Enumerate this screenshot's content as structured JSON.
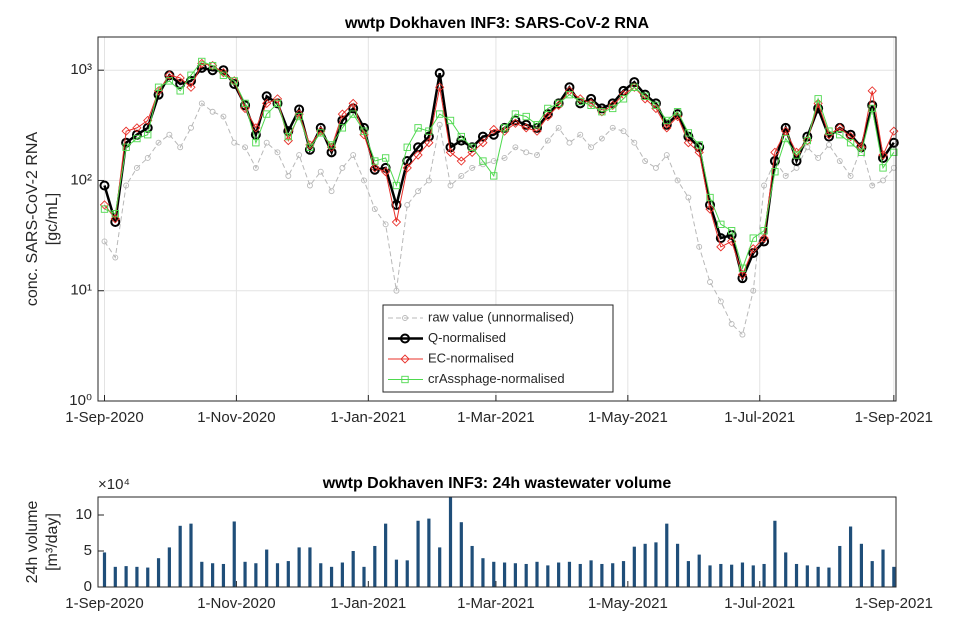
{
  "chart_data": [
    {
      "type": "line",
      "title": "wwtp Dokhaven INF3: SARS-CoV-2 RNA",
      "y_label": [
        "conc. SARS-CoV-2 RNA",
        "[gc/mL]"
      ],
      "log_scale_y": true,
      "grid": true,
      "legend": "bottom-center",
      "xlim": [
        "2020-08-29",
        "2021-09-02"
      ],
      "xticks": [
        {
          "value": "2020-09-01",
          "label": "1-Sep-2020"
        },
        {
          "value": "2020-11-01",
          "label": "1-Nov-2020"
        },
        {
          "value": "2021-01-01",
          "label": "1-Jan-2021"
        },
        {
          "value": "2021-03-01",
          "label": "1-Mar-2021"
        },
        {
          "value": "2021-05-01",
          "label": "1-May-2021"
        },
        {
          "value": "2021-07-01",
          "label": "1-Jul-2021"
        },
        {
          "value": "2021-09-01",
          "label": "1-Sep-2021"
        }
      ],
      "ylim": [
        1,
        2000
      ],
      "yticks": [
        {
          "value": 1,
          "label": "10⁰"
        },
        {
          "value": 10,
          "label": "10¹"
        },
        {
          "value": 100,
          "label": "10²"
        },
        {
          "value": 1000,
          "label": "10³"
        }
      ],
      "x": [
        "2020-09-01",
        "2020-09-06",
        "2020-09-11",
        "2020-09-16",
        "2020-09-21",
        "2020-09-26",
        "2020-10-01",
        "2020-10-06",
        "2020-10-11",
        "2020-10-16",
        "2020-10-21",
        "2020-10-26",
        "2020-10-31",
        "2020-11-05",
        "2020-11-10",
        "2020-11-15",
        "2020-11-20",
        "2020-11-25",
        "2020-11-30",
        "2020-12-05",
        "2020-12-10",
        "2020-12-15",
        "2020-12-20",
        "2020-12-25",
        "2020-12-30",
        "2021-01-04",
        "2021-01-09",
        "2021-01-14",
        "2021-01-19",
        "2021-01-24",
        "2021-01-29",
        "2021-02-03",
        "2021-02-08",
        "2021-02-13",
        "2021-02-18",
        "2021-02-23",
        "2021-02-28",
        "2021-03-05",
        "2021-03-10",
        "2021-03-15",
        "2021-03-20",
        "2021-03-25",
        "2021-03-30",
        "2021-04-04",
        "2021-04-09",
        "2021-04-14",
        "2021-04-19",
        "2021-04-24",
        "2021-04-29",
        "2021-05-04",
        "2021-05-09",
        "2021-05-14",
        "2021-05-19",
        "2021-05-24",
        "2021-05-29",
        "2021-06-03",
        "2021-06-08",
        "2021-06-13",
        "2021-06-18",
        "2021-06-23",
        "2021-06-28",
        "2021-07-03",
        "2021-07-08",
        "2021-07-13",
        "2021-07-18",
        "2021-07-23",
        "2021-07-28",
        "2021-08-02",
        "2021-08-07",
        "2021-08-12",
        "2021-08-17",
        "2021-08-22",
        "2021-08-27",
        "2021-09-01"
      ],
      "series": [
        {
          "name": "raw value (unnormalised)",
          "color": "#b8b8b8",
          "marker": "o",
          "dashed": true,
          "width": 1,
          "values": [
            28,
            20,
            90,
            130,
            160,
            220,
            260,
            200,
            300,
            500,
            420,
            380,
            220,
            200,
            130,
            220,
            180,
            110,
            170,
            90,
            120,
            80,
            130,
            170,
            100,
            55,
            40,
            10,
            60,
            80,
            100,
            320,
            90,
            110,
            130,
            140,
            150,
            160,
            200,
            180,
            170,
            230,
            300,
            220,
            260,
            200,
            240,
            300,
            280,
            220,
            150,
            130,
            170,
            100,
            70,
            25,
            12,
            8,
            5,
            4,
            10,
            90,
            150,
            110,
            130,
            200,
            160,
            210,
            150,
            110,
            200,
            90,
            100,
            130
          ]
        },
        {
          "name": "Q-normalised",
          "color": "#000000",
          "marker": "o",
          "dashed": false,
          "width": 2.5,
          "values": [
            90,
            42,
            220,
            260,
            300,
            600,
            900,
            750,
            800,
            1050,
            1000,
            1000,
            750,
            480,
            260,
            580,
            500,
            280,
            440,
            190,
            300,
            180,
            350,
            450,
            300,
            125,
            130,
            60,
            150,
            200,
            250,
            940,
            200,
            230,
            200,
            250,
            260,
            300,
            350,
            320,
            300,
            400,
            500,
            700,
            500,
            550,
            450,
            500,
            650,
            780,
            600,
            500,
            320,
            400,
            250,
            200,
            60,
            30,
            32,
            13,
            22,
            28,
            150,
            300,
            150,
            250,
            450,
            250,
            300,
            260,
            200,
            480,
            160,
            220
          ]
        },
        {
          "name": "EC-normalised",
          "color": "#e8302a",
          "marker": "d",
          "dashed": false,
          "width": 1,
          "values": [
            60,
            45,
            280,
            300,
            350,
            650,
            900,
            850,
            700,
            1150,
            1100,
            950,
            800,
            450,
            300,
            500,
            550,
            230,
            400,
            210,
            280,
            200,
            400,
            500,
            260,
            130,
            120,
            42,
            130,
            170,
            220,
            700,
            180,
            150,
            180,
            220,
            290,
            280,
            330,
            300,
            280,
            380,
            480,
            650,
            550,
            500,
            420,
            480,
            600,
            700,
            550,
            450,
            300,
            380,
            220,
            180,
            55,
            25,
            28,
            14,
            24,
            30,
            180,
            280,
            180,
            230,
            500,
            260,
            300,
            250,
            200,
            650,
            170,
            280
          ]
        },
        {
          "name": "crAssphage-normalised",
          "color": "#4ed94e",
          "marker": "s",
          "dashed": false,
          "width": 1,
          "values": [
            55,
            50,
            200,
            240,
            260,
            700,
            800,
            650,
            900,
            1200,
            1100,
            900,
            800,
            500,
            220,
            400,
            500,
            250,
            380,
            200,
            270,
            210,
            300,
            400,
            280,
            150,
            160,
            90,
            200,
            300,
            280,
            400,
            350,
            250,
            200,
            150,
            110,
            300,
            400,
            380,
            320,
            450,
            500,
            600,
            520,
            480,
            420,
            450,
            550,
            700,
            580,
            480,
            350,
            420,
            270,
            210,
            70,
            40,
            35,
            16,
            30,
            35,
            120,
            240,
            170,
            230,
            550,
            280,
            260,
            220,
            180,
            450,
            130,
            180
          ]
        }
      ]
    },
    {
      "type": "bar",
      "title": "wwtp Dokhaven INF3: 24h wastewater volume",
      "y_label": [
        "24h volume",
        "[m³/day]"
      ],
      "y_exponent_label": "×10⁴",
      "color": "#1f4e79",
      "xlim": [
        "2020-08-29",
        "2021-09-02"
      ],
      "xticks": [
        {
          "value": "2020-09-01",
          "label": "1-Sep-2020"
        },
        {
          "value": "2020-11-01",
          "label": "1-Nov-2020"
        },
        {
          "value": "2021-01-01",
          "label": "1-Jan-2021"
        },
        {
          "value": "2021-03-01",
          "label": "1-Mar-2021"
        },
        {
          "value": "2021-05-01",
          "label": "1-May-2021"
        },
        {
          "value": "2021-07-01",
          "label": "1-Jul-2021"
        },
        {
          "value": "2021-09-01",
          "label": "1-Sep-2021"
        }
      ],
      "ylim": [
        0,
        125000
      ],
      "yticks": [
        {
          "value": 0,
          "label": "0"
        },
        {
          "value": 50000,
          "label": "5"
        },
        {
          "value": 100000,
          "label": "10"
        }
      ],
      "x": [
        "2020-09-01",
        "2020-09-06",
        "2020-09-11",
        "2020-09-16",
        "2020-09-21",
        "2020-09-26",
        "2020-10-01",
        "2020-10-06",
        "2020-10-11",
        "2020-10-16",
        "2020-10-21",
        "2020-10-26",
        "2020-10-31",
        "2020-11-05",
        "2020-11-10",
        "2020-11-15",
        "2020-11-20",
        "2020-11-25",
        "2020-11-30",
        "2020-12-05",
        "2020-12-10",
        "2020-12-15",
        "2020-12-20",
        "2020-12-25",
        "2020-12-30",
        "2021-01-04",
        "2021-01-09",
        "2021-01-14",
        "2021-01-19",
        "2021-01-24",
        "2021-01-29",
        "2021-02-03",
        "2021-02-08",
        "2021-02-13",
        "2021-02-18",
        "2021-02-23",
        "2021-02-28",
        "2021-03-05",
        "2021-03-10",
        "2021-03-15",
        "2021-03-20",
        "2021-03-25",
        "2021-03-30",
        "2021-04-04",
        "2021-04-09",
        "2021-04-14",
        "2021-04-19",
        "2021-04-24",
        "2021-04-29",
        "2021-05-04",
        "2021-05-09",
        "2021-05-14",
        "2021-05-19",
        "2021-05-24",
        "2021-05-29",
        "2021-06-03",
        "2021-06-08",
        "2021-06-13",
        "2021-06-18",
        "2021-06-23",
        "2021-06-28",
        "2021-07-03",
        "2021-07-08",
        "2021-07-13",
        "2021-07-18",
        "2021-07-23",
        "2021-07-28",
        "2021-08-02",
        "2021-08-07",
        "2021-08-12",
        "2021-08-17",
        "2021-08-22",
        "2021-08-27",
        "2021-09-01"
      ],
      "values": [
        48000,
        28000,
        29000,
        28000,
        27000,
        40000,
        55000,
        85000,
        88000,
        35000,
        33000,
        32000,
        91000,
        35000,
        33000,
        52000,
        33000,
        36000,
        55000,
        55000,
        33000,
        28000,
        34000,
        50000,
        28000,
        57000,
        88000,
        38000,
        37000,
        92000,
        95000,
        55000,
        125000,
        90000,
        57000,
        40000,
        35000,
        34000,
        33000,
        32000,
        35000,
        30000,
        34000,
        35000,
        32000,
        37000,
        32000,
        33000,
        36000,
        56000,
        60000,
        62000,
        88000,
        60000,
        36000,
        45000,
        30000,
        32000,
        31000,
        34000,
        30000,
        32000,
        92000,
        48000,
        32000,
        30000,
        28000,
        27000,
        57000,
        84000,
        60000,
        36000,
        52000,
        28000
      ]
    }
  ]
}
